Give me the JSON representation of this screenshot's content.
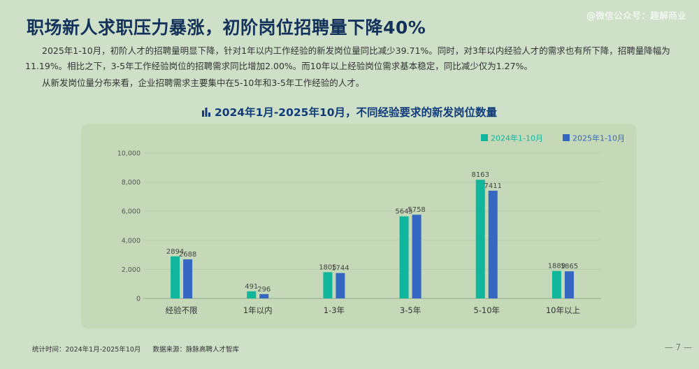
{
  "watermark": "@微信公众号：趣解商业",
  "headline": "职场新人求职压力暴涨，初阶岗位招聘量下降40%",
  "paragraphs": [
    "2025年1-10月，初阶人才的招聘量明显下降，针对1年以内工作经验的新发岗位量同比减少39.71%。同时，对3年以内经验人才的需求也有所下降，招聘量降幅为11.19%。相比之下，3-5年工作经验岗位的招聘需求同比增加2.00%。而10年以上经验岗位需求基本稳定，同比减少仅为1.27%。",
    "从新发岗位量分布来看，企业招聘需求主要集中在5-10年和3-5年工作经验的人才。"
  ],
  "footer": {
    "stat_time": "统计时间：2024年1月-2025年10月",
    "source": "数据来源：脉脉高聘人才智库"
  },
  "page_number": "— 7 —",
  "colors": {
    "series_2024": "#11b59c",
    "series_2025": "#3566c2",
    "title": "#13325b",
    "chart_title": "#0f3c78"
  },
  "chart_data": {
    "type": "bar",
    "title": "2024年1月-2025年10月，不同经验要求的新发岗位数量",
    "title_icon": "bar-chart-icon",
    "categories": [
      "经验不限",
      "1年以内",
      "1-3年",
      "3-5年",
      "5-10年",
      "10年以上"
    ],
    "series": [
      {
        "name": "2024年1-10月",
        "values": [
          2894,
          491,
          1805,
          5645,
          8163,
          1889
        ]
      },
      {
        "name": "2025年1-10月",
        "values": [
          2688,
          296,
          1744,
          5758,
          7411,
          1865
        ]
      }
    ],
    "ylim": [
      0,
      10000
    ],
    "yticks": [
      0,
      2000,
      4000,
      6000,
      8000,
      10000
    ],
    "ytick_labels": [
      "0",
      "2,000",
      "4,000",
      "6,000",
      "8,000",
      "10,000"
    ],
    "grid": true,
    "legend": "top-right",
    "xlabel": "",
    "ylabel": ""
  }
}
